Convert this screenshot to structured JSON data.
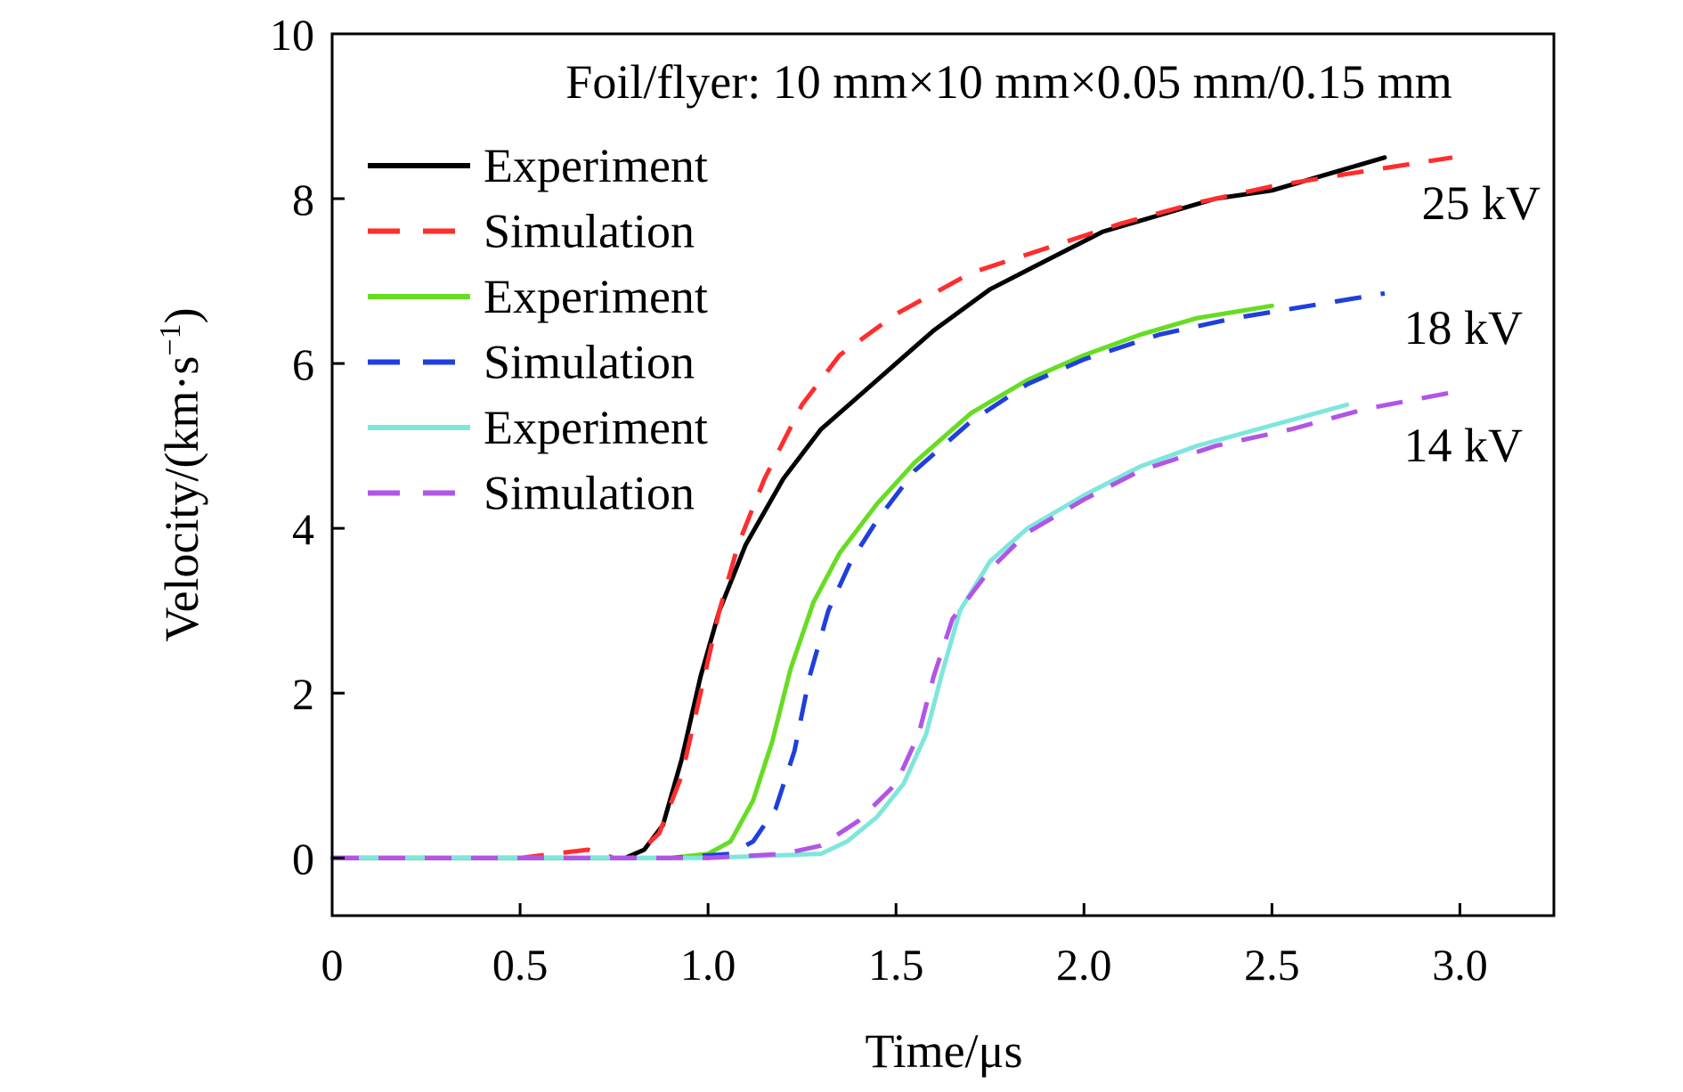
{
  "chart_data": {
    "type": "line",
    "title": "",
    "annotation": "Foil/flyer: 10 mm×10 mm×0.05 mm/0.15 mm",
    "xlabel": "Time/μs",
    "ylabel_main": "Velocity/(km·s",
    "ylabel_sup": "−1",
    "ylabel_close": ")",
    "xlim": [
      0,
      3.25
    ],
    "ylim": [
      -0.7,
      10
    ],
    "x_ticks": [
      0,
      0.5,
      1.0,
      1.5,
      2.0,
      2.5,
      3.0
    ],
    "x_tick_labels": [
      "0",
      "0.5",
      "1.0",
      "1.5",
      "2.0",
      "2.5",
      "3.0"
    ],
    "y_ticks": [
      0,
      2,
      4,
      6,
      8,
      10
    ],
    "y_tick_labels": [
      "0",
      "2",
      "4",
      "6",
      "8",
      "10"
    ],
    "grid": false,
    "legend_position": "top-left",
    "legend": [
      {
        "label": "Experiment",
        "color": "#000000",
        "dash": false
      },
      {
        "label": "Simulation",
        "color": "#ff2d2d",
        "dash": true
      },
      {
        "label": "Experiment",
        "color": "#66dd22",
        "dash": false
      },
      {
        "label": "Simulation",
        "color": "#1f3fdd",
        "dash": true
      },
      {
        "label": "Experiment",
        "color": "#7fe6dc",
        "dash": false
      },
      {
        "label": "Simulation",
        "color": "#b055e6",
        "dash": true
      }
    ],
    "series": [
      {
        "group": "25 kV",
        "kind": "Experiment",
        "color": "#000000",
        "dash": false,
        "points": [
          [
            0,
            0
          ],
          [
            0.5,
            0
          ],
          [
            0.78,
            0
          ],
          [
            0.83,
            0.1
          ],
          [
            0.88,
            0.4
          ],
          [
            0.93,
            1.2
          ],
          [
            0.98,
            2.2
          ],
          [
            1.03,
            3.0
          ],
          [
            1.1,
            3.8
          ],
          [
            1.2,
            4.6
          ],
          [
            1.3,
            5.2
          ],
          [
            1.45,
            5.8
          ],
          [
            1.6,
            6.4
          ],
          [
            1.75,
            6.9
          ],
          [
            1.9,
            7.25
          ],
          [
            2.05,
            7.6
          ],
          [
            2.2,
            7.8
          ],
          [
            2.35,
            8.0
          ],
          [
            2.5,
            8.1
          ],
          [
            2.65,
            8.3
          ],
          [
            2.8,
            8.5
          ]
        ]
      },
      {
        "group": "25 kV",
        "kind": "Simulation",
        "color": "#ff2d2d",
        "dash": true,
        "points": [
          [
            0,
            0
          ],
          [
            0.5,
            0
          ],
          [
            0.68,
            0.1
          ],
          [
            0.75,
            0
          ],
          [
            0.8,
            0
          ],
          [
            0.87,
            0.3
          ],
          [
            0.93,
            1.0
          ],
          [
            0.98,
            2.0
          ],
          [
            1.03,
            3.0
          ],
          [
            1.08,
            3.8
          ],
          [
            1.15,
            4.6
          ],
          [
            1.25,
            5.5
          ],
          [
            1.35,
            6.1
          ],
          [
            1.5,
            6.6
          ],
          [
            1.7,
            7.1
          ],
          [
            1.9,
            7.4
          ],
          [
            2.1,
            7.7
          ],
          [
            2.3,
            7.95
          ],
          [
            2.5,
            8.15
          ],
          [
            2.7,
            8.3
          ],
          [
            2.98,
            8.5
          ]
        ]
      },
      {
        "group": "18 kV",
        "kind": "Experiment",
        "color": "#66dd22",
        "dash": false,
        "points": [
          [
            0,
            0
          ],
          [
            0.9,
            0
          ],
          [
            1.0,
            0.05
          ],
          [
            1.06,
            0.2
          ],
          [
            1.12,
            0.7
          ],
          [
            1.17,
            1.4
          ],
          [
            1.22,
            2.3
          ],
          [
            1.28,
            3.1
          ],
          [
            1.35,
            3.7
          ],
          [
            1.45,
            4.3
          ],
          [
            1.55,
            4.8
          ],
          [
            1.7,
            5.4
          ],
          [
            1.85,
            5.8
          ],
          [
            2.0,
            6.1
          ],
          [
            2.15,
            6.35
          ],
          [
            2.3,
            6.55
          ],
          [
            2.5,
            6.7
          ]
        ]
      },
      {
        "group": "18 kV",
        "kind": "Simulation",
        "color": "#1f3fdd",
        "dash": true,
        "points": [
          [
            0,
            0
          ],
          [
            0.9,
            0
          ],
          [
            1.06,
            0.05
          ],
          [
            1.12,
            0.2
          ],
          [
            1.18,
            0.6
          ],
          [
            1.23,
            1.3
          ],
          [
            1.27,
            2.2
          ],
          [
            1.32,
            3.0
          ],
          [
            1.38,
            3.6
          ],
          [
            1.45,
            4.1
          ],
          [
            1.55,
            4.7
          ],
          [
            1.7,
            5.3
          ],
          [
            1.85,
            5.75
          ],
          [
            2.0,
            6.05
          ],
          [
            2.2,
            6.35
          ],
          [
            2.4,
            6.55
          ],
          [
            2.6,
            6.7
          ],
          [
            2.8,
            6.85
          ]
        ]
      },
      {
        "group": "14 kV",
        "kind": "Experiment",
        "color": "#7fe6dc",
        "dash": false,
        "points": [
          [
            0,
            0
          ],
          [
            1.0,
            0
          ],
          [
            1.3,
            0.05
          ],
          [
            1.37,
            0.2
          ],
          [
            1.45,
            0.5
          ],
          [
            1.52,
            0.9
          ],
          [
            1.58,
            1.5
          ],
          [
            1.62,
            2.2
          ],
          [
            1.67,
            3.0
          ],
          [
            1.75,
            3.6
          ],
          [
            1.85,
            4.0
          ],
          [
            2.0,
            4.4
          ],
          [
            2.15,
            4.75
          ],
          [
            2.3,
            5.0
          ],
          [
            2.5,
            5.25
          ],
          [
            2.7,
            5.5
          ]
        ]
      },
      {
        "group": "14 kV",
        "kind": "Simulation",
        "color": "#b055e6",
        "dash": true,
        "points": [
          [
            0,
            0
          ],
          [
            1.0,
            0
          ],
          [
            1.2,
            0.05
          ],
          [
            1.3,
            0.15
          ],
          [
            1.4,
            0.45
          ],
          [
            1.5,
            0.9
          ],
          [
            1.56,
            1.5
          ],
          [
            1.6,
            2.2
          ],
          [
            1.65,
            2.9
          ],
          [
            1.75,
            3.5
          ],
          [
            1.85,
            3.95
          ],
          [
            2.0,
            4.35
          ],
          [
            2.15,
            4.7
          ],
          [
            2.35,
            5.0
          ],
          [
            2.55,
            5.2
          ],
          [
            2.75,
            5.45
          ],
          [
            2.98,
            5.65
          ]
        ]
      }
    ],
    "voltage_labels": [
      "25 kV",
      "18 kV",
      "14 kV"
    ]
  }
}
